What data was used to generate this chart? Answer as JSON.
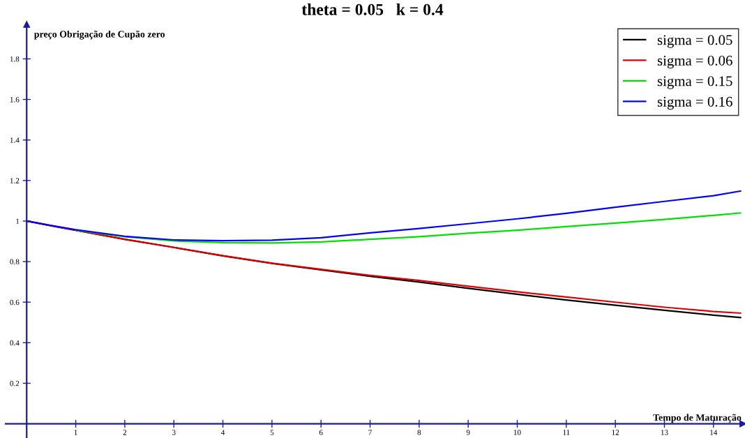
{
  "chart_data": {
    "type": "line",
    "title": "theta = 0.05   k = 0.4",
    "xlabel": "Tempo de Maturação",
    "ylabel": "preço Obrigação de Cupão zero",
    "x": [
      0,
      0.5,
      1,
      2,
      3,
      4,
      5,
      6,
      7,
      8,
      9,
      10,
      11,
      12,
      13,
      14,
      14.55
    ],
    "series": [
      {
        "name": "sigma = 0.05",
        "color": "#000000",
        "values": [
          1.0,
          0.977,
          0.955,
          0.91,
          0.87,
          0.828,
          0.791,
          0.759,
          0.728,
          0.699,
          0.668,
          0.639,
          0.611,
          0.585,
          0.56,
          0.536,
          0.524
        ]
      },
      {
        "name": "sigma = 0.06",
        "color": "#e00000",
        "values": [
          1.0,
          0.977,
          0.955,
          0.91,
          0.87,
          0.829,
          0.792,
          0.762,
          0.732,
          0.707,
          0.679,
          0.651,
          0.625,
          0.6,
          0.575,
          0.554,
          0.546
        ]
      },
      {
        "name": "sigma = 0.15",
        "color": "#00e000",
        "values": [
          null,
          null,
          0.955,
          0.923,
          0.902,
          0.894,
          0.892,
          0.897,
          0.91,
          0.923,
          0.94,
          0.955,
          0.973,
          0.99,
          1.008,
          1.028,
          1.04
        ]
      },
      {
        "name": "sigma = 0.16",
        "color": "#0000ff",
        "values": [
          1.0,
          0.978,
          0.957,
          0.925,
          0.907,
          0.903,
          0.906,
          0.918,
          0.942,
          0.963,
          0.987,
          1.011,
          1.038,
          1.068,
          1.097,
          1.125,
          1.148
        ]
      }
    ],
    "xlim": [
      -0.43,
      14.6
    ],
    "ylim": [
      -0.07,
      1.97
    ],
    "xticks": [
      1,
      2,
      3,
      4,
      5,
      6,
      7,
      8,
      9,
      10,
      11,
      12,
      13,
      14
    ],
    "yticks": [
      0.2,
      0.4,
      0.6,
      0.8,
      1,
      1.2,
      1.4,
      1.6,
      1.8
    ],
    "grid": false,
    "legend": "top right",
    "marker": "none",
    "line_style": "solid"
  }
}
